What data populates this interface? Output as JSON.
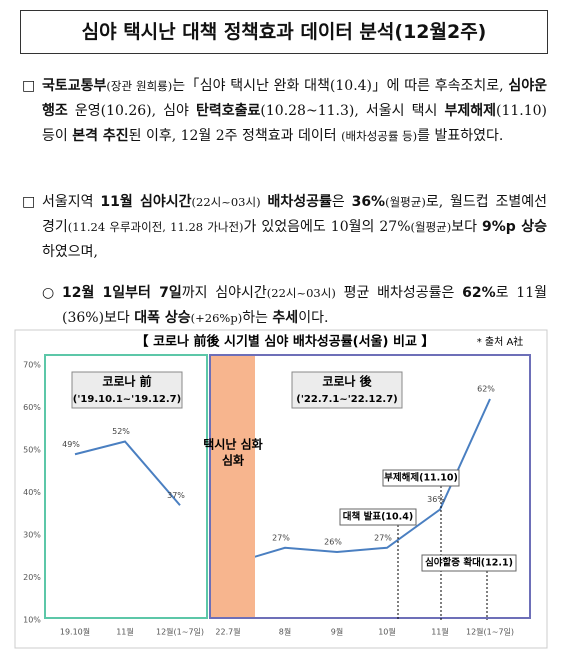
{
  "header": {
    "title": "심야 택시난 대책 정책효과 데이터 분석(12월2주)"
  },
  "paragraphs": [
    {
      "marker": "□",
      "runs": [
        "국토교통부",
        "(장관 원희룡)",
        "는「심야 택시난 완화 대책(10.4)」에 따른 후속조치로, ",
        "심야운행조",
        " 운영(10.26), 심야 ",
        "탄력호출료",
        "(10.28~11.3), 서울시 택시 ",
        "부제해제",
        "(11.10) 등이 ",
        "본격 추진",
        "된 이후, 12월 2주 정책효과 데이터 ",
        "(배차성공률 등)",
        "를 발표하였다."
      ]
    },
    {
      "marker": "□",
      "runs": [
        "서울지역 ",
        "11월 심야시간",
        "(22시~03시)",
        " ",
        "배차성공률",
        "은 ",
        "36%",
        "(월평균)",
        "로, 월드컵 조별예선 경기",
        "(11.24 우루과이전, 11.28 가나전)",
        "가 있었음에도 10월의 27%",
        "(월평균)",
        "보다 ",
        "9%p 상승",
        "하였으며,"
      ]
    },
    {
      "marker": "○",
      "runs": [
        "12월 1일부터 7일",
        "까지 심야시간",
        "(22시~03시)",
        " 평균 배차성공률은 ",
        "62%",
        "로 11월(36%)보다 ",
        "대폭 상승",
        "(+26%p)",
        "하는 ",
        "추세",
        "이다."
      ]
    }
  ],
  "chart_data": {
    "type": "line",
    "title": "【 코로나 前後 시기별 심야 배차성공률(서울) 비교 】",
    "source": "* 출처 A社",
    "categories": [
      "19.10월",
      "11월",
      "12월(1~7일)",
      "22.7월",
      "8월",
      "9월",
      "10월",
      "11월",
      "12월(1~7일)"
    ],
    "series": [
      {
        "name": "코로나 前",
        "color": "#4a7fc1",
        "values": [
          49,
          52,
          37,
          null,
          null,
          null,
          null,
          null,
          null
        ],
        "value_labels": [
          "49%",
          "52%",
          "37%",
          null,
          null,
          null,
          null,
          null,
          null
        ]
      },
      {
        "name": "코로나 後",
        "color": "#4a7fc1",
        "values": [
          null,
          null,
          null,
          23,
          27,
          26,
          27,
          36,
          62
        ],
        "value_labels": [
          null,
          null,
          null,
          null,
          "27%",
          "26%",
          "27%",
          "36%",
          "62%"
        ]
      }
    ],
    "ylim": [
      10,
      70
    ],
    "yticks": [
      {
        "value": 10,
        "label": "10%"
      },
      {
        "value": 20,
        "label": "20%"
      },
      {
        "value": 30,
        "label": "30%"
      },
      {
        "value": 40,
        "label": "40%"
      },
      {
        "value": 50,
        "label": "50%"
      },
      {
        "value": 60,
        "label": "60%"
      },
      {
        "value": 70,
        "label": "70%"
      }
    ],
    "annotations": {
      "before_period": "('19.10.1~'19.12.7)",
      "after_period": "('22.7.1~'22.12.7)",
      "band": "택시난 심화",
      "callouts": [
        "부제해제(11.10)",
        "대책 발표(10.4)",
        "심야할증 확대(12.1)"
      ]
    }
  }
}
